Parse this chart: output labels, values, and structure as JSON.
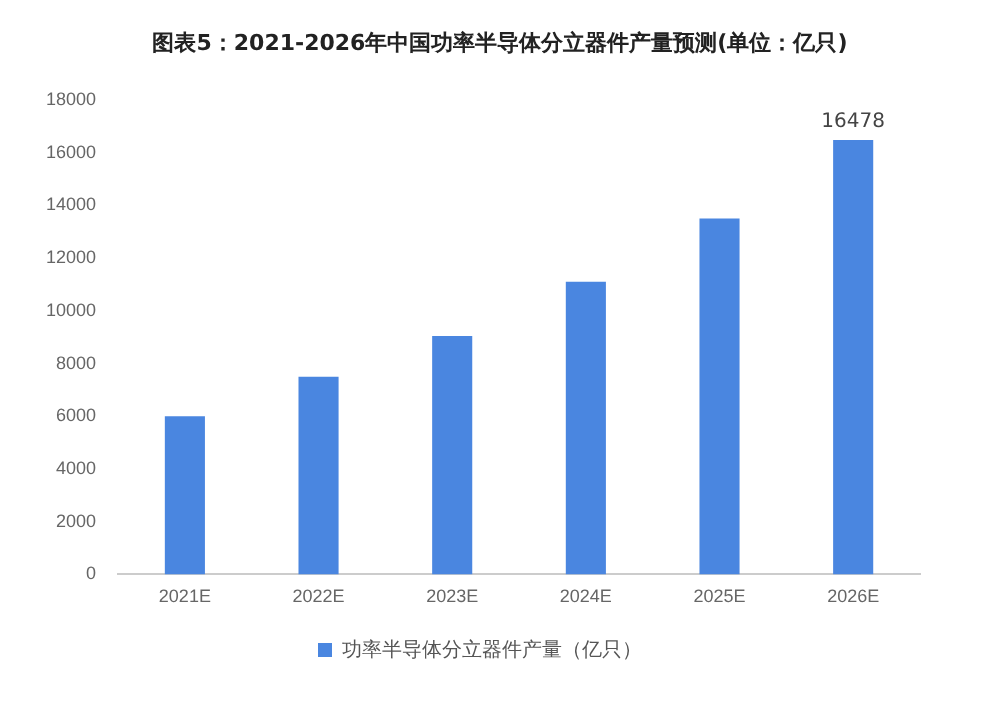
{
  "chart_data": {
    "type": "bar",
    "title": "图表5：2021-2026年中国功率半导体分立器件产量预测(单位：亿只)",
    "categories": [
      "2021E",
      "2022E",
      "2023E",
      "2024E",
      "2025E",
      "2026E"
    ],
    "series": [
      {
        "name": "功率半导体分立器件产量（亿只）",
        "color": "#4a86e0",
        "values": [
          6000,
          7500,
          9050,
          11100,
          13500,
          16478
        ],
        "value_labels": [
          null,
          null,
          null,
          null,
          null,
          "16478"
        ]
      }
    ],
    "ylim": [
      0,
      18000
    ],
    "yticks": [
      0,
      2000,
      4000,
      6000,
      8000,
      10000,
      12000,
      14000,
      16000,
      18000
    ],
    "grid": false,
    "legend": "bottom"
  }
}
